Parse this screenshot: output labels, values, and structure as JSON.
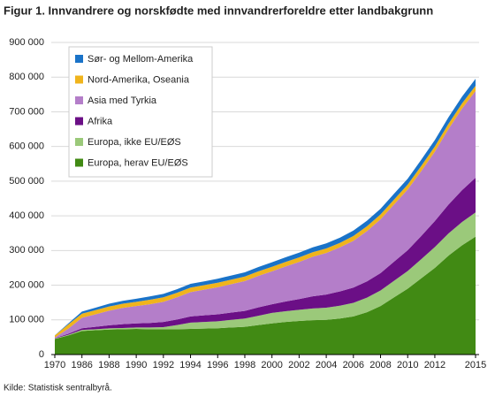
{
  "chart_data": {
    "type": "stacked_area",
    "title": "Figur 1. Innvandrere og norskfødte med innvandrerforeldre etter landbakgrunn",
    "source": "Kilde: Statistisk sentralbyrå.",
    "categories": [
      1970,
      null,
      1986,
      null,
      1988,
      null,
      1990,
      null,
      1992,
      null,
      1994,
      null,
      1996,
      null,
      1998,
      null,
      2000,
      null,
      2002,
      null,
      2004,
      null,
      2006,
      null,
      2008,
      null,
      2010,
      null,
      2012,
      null,
      null,
      2015
    ],
    "series": [
      {
        "name": "Europa, herav EU/EØS",
        "color": "#418a14",
        "values": [
          45000,
          55000,
          68000,
          70000,
          72000,
          73000,
          74000,
          73000,
          73000,
          73000,
          74000,
          75000,
          76000,
          78000,
          80000,
          85000,
          90000,
          94000,
          97000,
          99000,
          100000,
          104000,
          110000,
          122000,
          140000,
          165000,
          190000,
          220000,
          250000,
          285000,
          315000,
          340000
        ]
      },
      {
        "name": "Europa, ikke EU/EØS",
        "color": "#9bc97a",
        "values": [
          1000,
          2000,
          3000,
          3000,
          3500,
          3500,
          4000,
          5000,
          6000,
          12000,
          18000,
          19000,
          20000,
          22000,
          24000,
          27000,
          30000,
          31000,
          32000,
          34000,
          35000,
          37000,
          39000,
          42000,
          45000,
          48000,
          51000,
          55000,
          60000,
          64000,
          67000,
          70000
        ]
      },
      {
        "name": "Afrika",
        "color": "#6b0f86",
        "values": [
          1000,
          3000,
          5000,
          7000,
          9000,
          11000,
          12000,
          13000,
          15000,
          16000,
          18000,
          19000,
          20000,
          21000,
          22000,
          24000,
          25000,
          28000,
          31000,
          35000,
          38000,
          41000,
          44000,
          47000,
          50000,
          55000,
          60000,
          67000,
          75000,
          83000,
          92000,
          100000
        ]
      },
      {
        "name": "Asia med Tyrkia",
        "color": "#b47ec9",
        "values": [
          2000,
          15000,
          30000,
          36000,
          42000,
          47000,
          50000,
          54000,
          58000,
          64000,
          70000,
          74000,
          78000,
          82000,
          86000,
          91000,
          95000,
          101000,
          107000,
          114000,
          120000,
          127000,
          135000,
          145000,
          155000,
          165000,
          175000,
          187000,
          200000,
          218000,
          235000,
          250000
        ]
      },
      {
        "name": "Nord-Amerika, Oseania",
        "color": "#f0b41c",
        "values": [
          6000,
          12000,
          12000,
          12000,
          12000,
          12000,
          12000,
          13000,
          13000,
          13000,
          13000,
          13000,
          13000,
          13000,
          13000,
          13000,
          13000,
          13000,
          13000,
          13000,
          13000,
          13000,
          14000,
          14000,
          14000,
          14000,
          14000,
          15000,
          15000,
          15000,
          15000,
          15000
        ]
      },
      {
        "name": "Sør- og Mellom-Amerika",
        "color": "#1a73c8",
        "values": [
          500,
          3000,
          6000,
          7000,
          8000,
          8500,
          9000,
          9500,
          10000,
          10500,
          11000,
          11000,
          11500,
          12000,
          12000,
          12500,
          13000,
          13500,
          14000,
          14000,
          14500,
          15000,
          15500,
          16000,
          16500,
          17000,
          17000,
          18000,
          18500,
          19000,
          19500,
          20000
        ]
      }
    ],
    "ylim": [
      0,
      900000
    ],
    "yticks": [
      0,
      {
        "value": 100000,
        "label": "100 000"
      },
      {
        "value": 200000,
        "label": "200 000"
      },
      {
        "value": 300000,
        "label": "300 000"
      },
      {
        "value": 400000,
        "label": "400 000"
      },
      {
        "value": 500000,
        "label": "500 000"
      },
      {
        "value": 600000,
        "label": "600 000"
      },
      {
        "value": 700000,
        "label": "700 000"
      },
      {
        "value": 800000,
        "label": "800 000"
      },
      {
        "value": 900000,
        "label": "900 000"
      }
    ],
    "grid": true,
    "legend": "upper left"
  }
}
